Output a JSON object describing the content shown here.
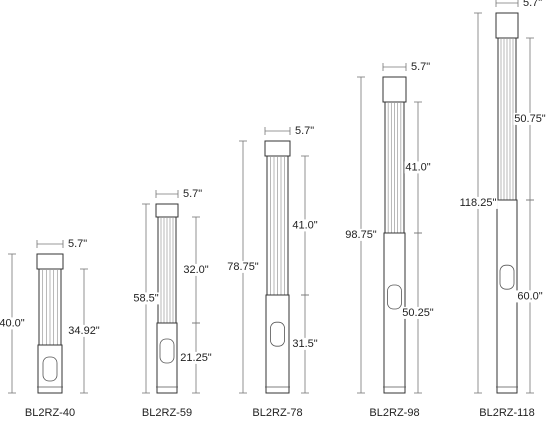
{
  "products": [
    {
      "name": "BL2RZ-40",
      "width": "5.7\"",
      "overall": "40.0\"",
      "segments": [
        "34.92\""
      ]
    },
    {
      "name": "BL2RZ-59",
      "width": "5.7\"",
      "overall": "58.5\"",
      "segments": [
        "32.0\"",
        "21.25\""
      ]
    },
    {
      "name": "BL2RZ-78",
      "width": "5.7\"",
      "overall": "78.75\"",
      "segments": [
        "41.0\"",
        "31.5\""
      ]
    },
    {
      "name": "BL2RZ-98",
      "width": "5.7\"",
      "overall": "98.75\"",
      "segments": [
        "41.0\"",
        "50.25\""
      ]
    },
    {
      "name": "BL2RZ-118",
      "width": "5.7\"",
      "overall": "118.25\"",
      "segments": [
        "50.75\"",
        "60.0\""
      ]
    }
  ]
}
